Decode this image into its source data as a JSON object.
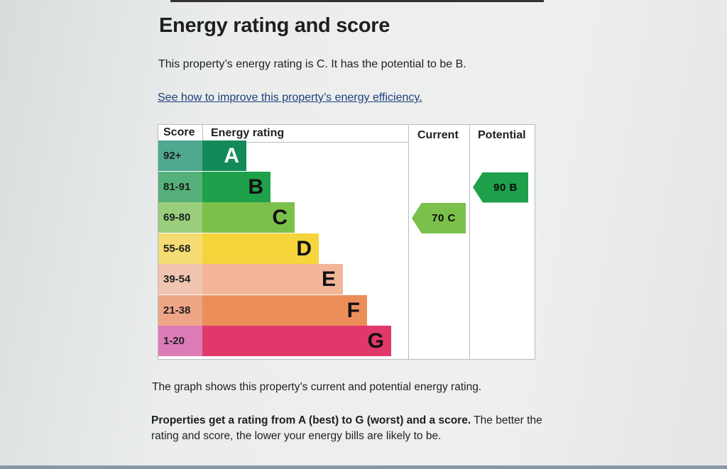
{
  "page": {
    "title": "Energy rating and score",
    "summary": "This property’s energy rating is C. It has the potential to be B.",
    "improve_link": "See how to improve this property’s energy efficiency",
    "improve_link_suffix": ".",
    "graph_note": "The graph shows this property’s current and potential energy rating.",
    "rating_info_bold": "Properties get a rating from A (best) to G (worst) and a score.",
    "rating_info_rest": " The better the rating and score, the lower your energy bills are likely to be."
  },
  "chart_headers": {
    "score": "Score",
    "rating": "Energy rating",
    "current": "Current",
    "potential": "Potential"
  },
  "bands": [
    {
      "score": "92+",
      "letter": "A",
      "color": "#138a5a",
      "score_bg": "#4fa88f"
    },
    {
      "score": "81-91",
      "letter": "B",
      "color": "#1fa04a",
      "score_bg": "#55b07a"
    },
    {
      "score": "69-80",
      "letter": "C",
      "color": "#7cc04c",
      "score_bg": "#9acd7c"
    },
    {
      "score": "55-68",
      "letter": "D",
      "color": "#f5d43c",
      "score_bg": "#f4dc72"
    },
    {
      "score": "39-54",
      "letter": "E",
      "color": "#f2b59a",
      "score_bg": "#f0c4b0"
    },
    {
      "score": "21-38",
      "letter": "F",
      "color": "#ec8e5a",
      "score_bg": "#eda585"
    },
    {
      "score": "1-20",
      "letter": "G",
      "color": "#e0386a",
      "score_bg": "#dc7cb6"
    }
  ],
  "current": {
    "label": "70 C",
    "band": "C",
    "color": "#7cc04c"
  },
  "potential": {
    "label": "90 B",
    "band": "B",
    "color": "#1fa04a"
  },
  "chart_data": {
    "type": "table",
    "title": "Energy rating and score",
    "categories": [
      "A",
      "B",
      "C",
      "D",
      "E",
      "F",
      "G"
    ],
    "score_ranges": [
      "92+",
      "81-91",
      "69-80",
      "55-68",
      "39-54",
      "21-38",
      "1-20"
    ],
    "current": {
      "score": 70,
      "rating": "C"
    },
    "potential": {
      "score": 90,
      "rating": "B"
    }
  }
}
